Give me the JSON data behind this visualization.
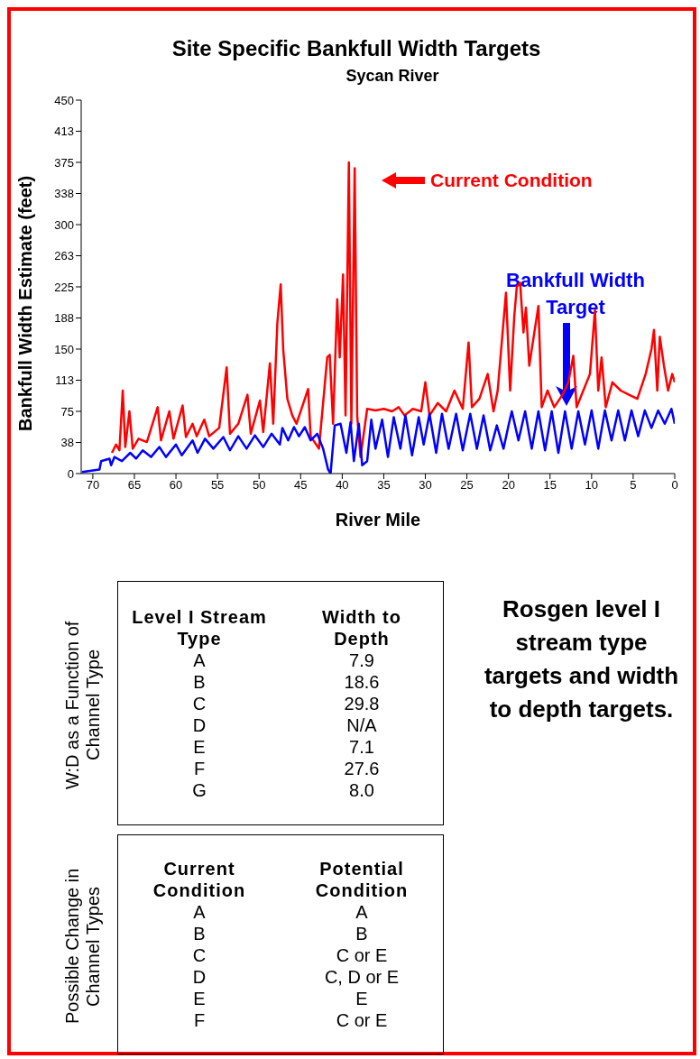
{
  "chart_data": [
    {
      "type": "line",
      "title": "Site Specific Bankfull Width Targets",
      "subtitle": "Sycan River",
      "xlabel": "River Mile",
      "ylabel": "Bankfull Width Estimate (feet)",
      "xlim": [
        71.4,
        0
      ],
      "xticks": [
        70,
        65,
        60,
        55,
        50,
        45,
        40,
        35,
        30,
        25,
        20,
        15,
        10,
        5,
        0
      ],
      "ylim": [
        0,
        450
      ],
      "yticks": [
        0,
        {
          "value": 37.5,
          "label": "38"
        },
        75,
        {
          "value": 112.5,
          "label": "113"
        },
        150,
        {
          "value": 187.5,
          "label": "188"
        },
        225,
        {
          "value": 262.5,
          "label": "263"
        },
        300,
        {
          "value": 337.5,
          "label": "338"
        },
        375,
        {
          "value": 412.5,
          "label": "413"
        },
        450
      ],
      "grid": false,
      "legend": false,
      "marker": "none",
      "line_style": "solid",
      "series": [
        {
          "color": "#ff0000",
          "x": [
            67.7,
            67.2,
            66.8,
            66.4,
            66.1,
            65.6,
            65.2,
            64.5,
            63.5,
            62.2,
            61.8,
            60.8,
            60.3,
            59.2,
            58.8,
            58,
            57.5,
            56.6,
            56,
            54.8,
            53.9,
            53.5,
            52.5,
            51.4,
            51,
            49.9,
            49.5,
            48.7,
            48.3,
            47.8,
            47.4,
            47.1,
            46.6,
            46,
            45.5,
            44.1,
            43.8,
            42.8,
            41.8,
            41.5,
            41.1,
            40.6,
            40.3,
            39.9,
            39.6,
            39.2,
            38.9,
            38.5,
            38.2,
            37.8,
            37,
            36,
            35,
            34,
            33.2,
            32.5,
            31.5,
            30.5,
            30,
            29.5,
            28.5,
            27.5,
            26.5,
            25.5,
            24.8,
            24.4,
            23.5,
            22.5,
            21.8,
            21.3,
            20.3,
            19.8,
            19.3,
            19,
            18.6,
            18.2,
            17.9,
            17.5,
            16.4,
            16,
            15.3,
            14.5,
            13.5,
            12.8,
            12.2,
            11.8,
            11,
            10.2,
            9.6,
            9.2,
            8.8,
            8.3,
            7.5,
            6.5,
            5.5,
            4.5,
            3.5,
            2.8,
            2.5,
            2.1,
            1.8,
            1.3,
            0.8,
            0.3,
            0
          ],
          "values": [
            25,
            35,
            28,
            100,
            32,
            75,
            30,
            42,
            38,
            80,
            40,
            75,
            42,
            82,
            44,
            60,
            45,
            65,
            45,
            55,
            128,
            48,
            60,
            95,
            48,
            88,
            50,
            133,
            60,
            182,
            228,
            150,
            90,
            70,
            60,
            102,
            45,
            30,
            140,
            143,
            60,
            210,
            140,
            240,
            70,
            375,
            60,
            368,
            70,
            20,
            78,
            76,
            78,
            75,
            80,
            70,
            78,
            75,
            110,
            70,
            85,
            75,
            100,
            78,
            158,
            80,
            90,
            120,
            75,
            100,
            218,
            100,
            190,
            225,
            230,
            170,
            200,
            130,
            202,
            80,
            100,
            80,
            95,
            110,
            142,
            80,
            100,
            120,
            197,
            100,
            140,
            80,
            110,
            100,
            95,
            90,
            120,
            150,
            173,
            100,
            165,
            130,
            100,
            120,
            110
          ]
        },
        {
          "color": "#0000ff",
          "x": [
            71.3,
            69.2,
            69,
            68,
            67.8,
            67.4,
            66.5,
            65.5,
            64.8,
            64,
            63,
            62,
            61.2,
            60,
            59.3,
            58,
            57.4,
            56.5,
            55.5,
            54.3,
            53.5,
            52.5,
            51.5,
            50.5,
            49.5,
            48.5,
            47.5,
            47.2,
            46.5,
            45.8,
            45.2,
            44.5,
            43.8,
            43,
            42.3,
            41.7,
            41.4,
            40.9,
            40.2,
            39.5,
            39,
            38.6,
            38,
            37.6,
            37,
            36.5,
            36,
            35.2,
            34.5,
            33.8,
            33,
            32.4,
            31.6,
            30.8,
            30.2,
            29.5,
            28.7,
            28,
            27.2,
            26.3,
            25.5,
            24.6,
            23.8,
            23,
            22.2,
            21.4,
            20.6,
            20,
            19.6,
            18.8,
            18,
            17.2,
            16.4,
            15.6,
            14.8,
            14,
            13.2,
            12.4,
            11.6,
            10.8,
            10,
            9.2,
            8.4,
            7.6,
            6.8,
            6,
            5.2,
            4.4,
            3.6,
            2.8,
            2,
            1.2,
            0.4,
            0
          ],
          "values": [
            2,
            5,
            15,
            18,
            10,
            20,
            15,
            25,
            18,
            28,
            20,
            32,
            20,
            35,
            22,
            40,
            25,
            42,
            30,
            44,
            28,
            45,
            30,
            46,
            32,
            48,
            35,
            55,
            40,
            56,
            45,
            56,
            40,
            48,
            30,
            5,
            0,
            58,
            60,
            25,
            62,
            15,
            60,
            10,
            15,
            65,
            30,
            65,
            20,
            68,
            30,
            70,
            22,
            68,
            35,
            72,
            25,
            72,
            30,
            72,
            28,
            72,
            30,
            70,
            28,
            58,
            30,
            58,
            75,
            40,
            75,
            30,
            75,
            28,
            75,
            25,
            75,
            30,
            75,
            35,
            76,
            30,
            76,
            40,
            76,
            40,
            76,
            45,
            76,
            55,
            76,
            60,
            78,
            60
          ]
        }
      ],
      "annotations": [
        "Current Condition",
        "Bankfull Width Target"
      ]
    },
    {
      "type": "other",
      "title": "W:D as a Function of Channel Type",
      "annotations": [
        "Level I Stream Type",
        "Width to Depth",
        "A",
        "7.9",
        "B",
        "18.6",
        "C",
        "29.8",
        "D",
        "N/A",
        "E",
        "7.1",
        "F",
        "27.6",
        "G",
        "8.0"
      ]
    },
    {
      "type": "other",
      "title": "Rosgen level I stream type targets and width to depth targets."
    },
    {
      "type": "other",
      "title": "Possible Change in Channel Types",
      "annotations": [
        "Current Condition",
        "Potential Condition",
        "A",
        "A",
        "B",
        "B",
        "C",
        "C or E",
        "D",
        "C, D or E",
        "E",
        "E",
        "F",
        "C or E"
      ]
    }
  ]
}
